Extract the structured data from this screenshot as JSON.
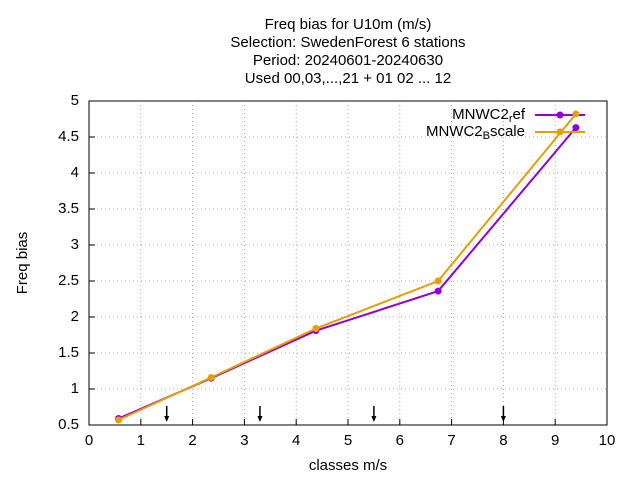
{
  "chart_data": {
    "type": "line",
    "title_lines": [
      "Freq bias  for U10m (m/s)",
      "Selection: SwedenForest      6 stations",
      "Period: 20240601-20240630",
      "Used 00,03,...,21 + 01 02 ... 12"
    ],
    "x_label": "classes m/s",
    "y_label": "Freq bias",
    "xlim": [
      0,
      10
    ],
    "xticks": [
      0,
      1,
      2,
      3,
      4,
      5,
      6,
      7,
      8,
      9,
      10
    ],
    "ylim": [
      0.5,
      5
    ],
    "yticks": [
      0.5,
      1,
      1.5,
      2,
      2.5,
      3,
      3.5,
      4,
      4.5,
      5
    ],
    "grid": true,
    "legend": "top-right",
    "arrows_x": [
      1.5,
      3.3,
      5.5,
      8
    ],
    "series": [
      {
        "name": "MNWC2_ref",
        "color": "#9400d3",
        "x": [
          0.57,
          2.36,
          4.38,
          6.74,
          9.4
        ],
        "values": [
          0.59,
          1.15,
          1.81,
          2.36,
          4.63
        ]
      },
      {
        "name": "MNWC2_Bscale",
        "color": "#e69f00",
        "x": [
          0.57,
          2.36,
          4.38,
          6.74,
          9.4
        ],
        "values": [
          0.57,
          1.16,
          1.84,
          2.5,
          4.82
        ]
      }
    ]
  }
}
